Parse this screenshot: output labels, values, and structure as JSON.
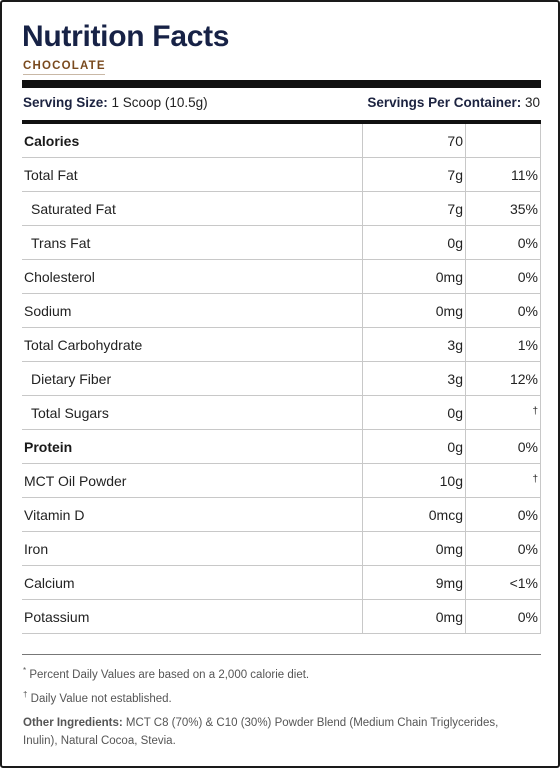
{
  "header": {
    "title": "Nutrition Facts",
    "flavor": "CHOCOLATE"
  },
  "serving": {
    "size_label": "Serving Size:",
    "size_value": "1 Scoop (10.5g)",
    "per_container_label": "Servings Per Container:",
    "per_container_value": "30"
  },
  "rows": [
    {
      "name": "Calories",
      "amount": "70",
      "dv": ""
    },
    {
      "name": "Total Fat",
      "amount": "7g",
      "dv": "11%"
    },
    {
      "name": "Saturated Fat",
      "amount": "7g",
      "dv": "35%"
    },
    {
      "name": "Trans Fat",
      "amount": "0g",
      "dv": "0%"
    },
    {
      "name": "Cholesterol",
      "amount": "0mg",
      "dv": "0%"
    },
    {
      "name": "Sodium",
      "amount": "0mg",
      "dv": "0%"
    },
    {
      "name": "Total Carbohydrate",
      "amount": "3g",
      "dv": "1%"
    },
    {
      "name": "Dietary Fiber",
      "amount": "3g",
      "dv": "12%"
    },
    {
      "name": "Total Sugars",
      "amount": "0g",
      "dv": "†"
    },
    {
      "name": "Protein",
      "amount": "0g",
      "dv": "0%"
    },
    {
      "name": "MCT Oil Powder",
      "amount": "10g",
      "dv": "†"
    },
    {
      "name": "Vitamin D",
      "amount": "0mcg",
      "dv": "0%"
    },
    {
      "name": "Iron",
      "amount": "0mg",
      "dv": "0%"
    },
    {
      "name": "Calcium",
      "amount": "9mg",
      "dv": "<1%"
    },
    {
      "name": "Potassium",
      "amount": "0mg",
      "dv": "0%"
    }
  ],
  "footnotes": {
    "percent_mark": "*",
    "percent_note": "Percent Daily Values are based on a 2,000 calorie diet.",
    "dagger_mark": "†",
    "dagger_note": "Daily Value not established."
  },
  "ingredients": {
    "label": "Other Ingredients:",
    "text": "MCT C8 (70%) & C10 (30%) Powder Blend (Medium Chain Triglycerides, Inulin), Natural Cocoa, Stevia."
  }
}
